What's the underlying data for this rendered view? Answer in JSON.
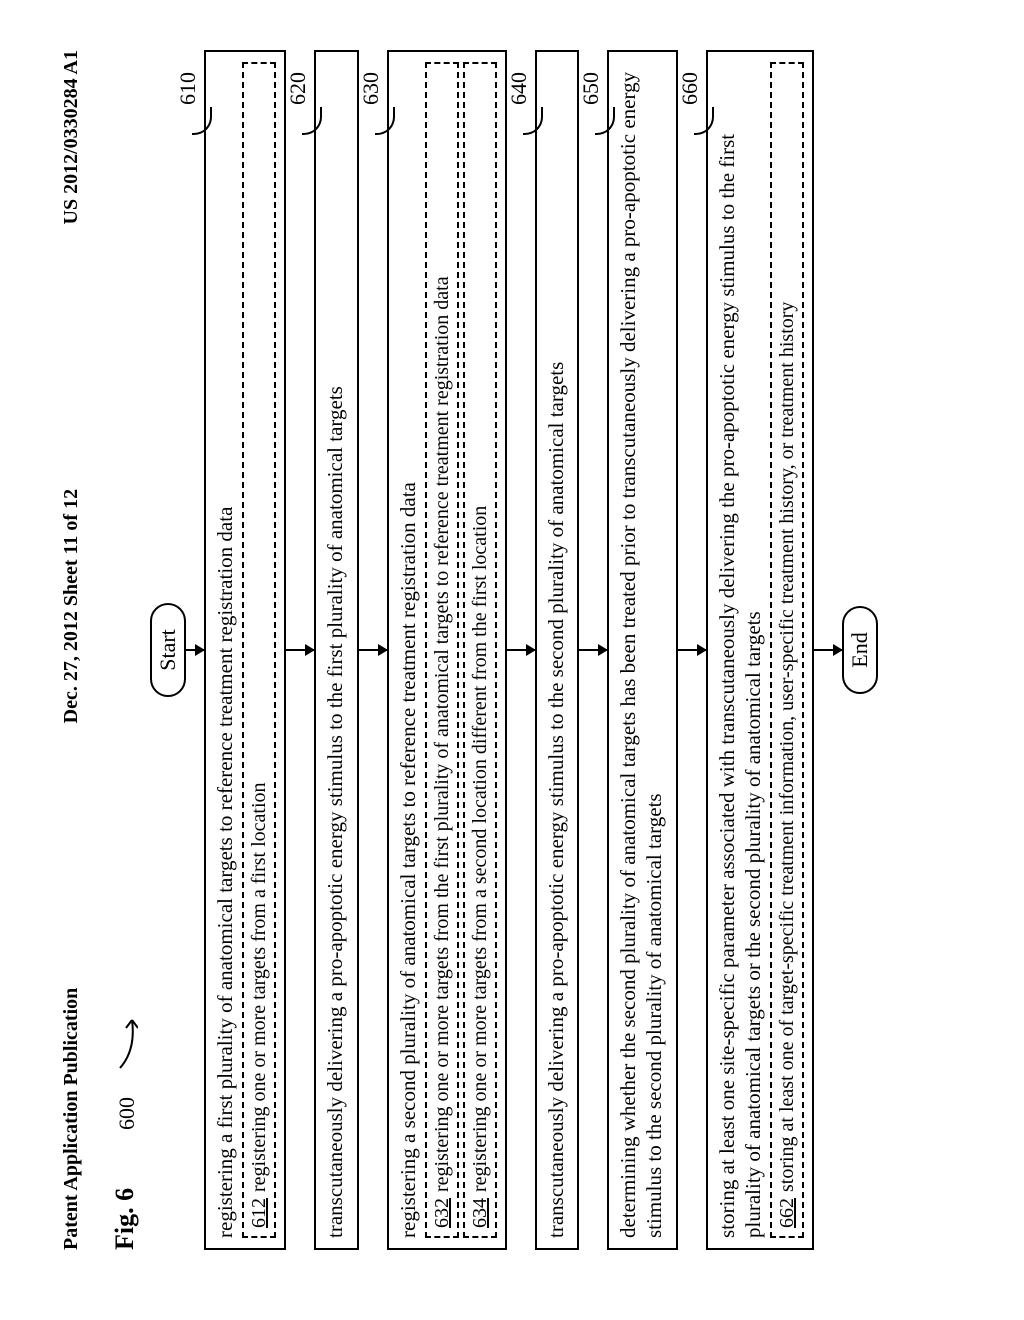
{
  "header": {
    "left": "Patent Application Publication",
    "center": "Dec. 27, 2012  Sheet 11 of 12",
    "right": "US 2012/0330284 A1"
  },
  "figure": {
    "label": "Fig. 6",
    "ref": "600",
    "start": "Start",
    "end": "End"
  },
  "steps": [
    {
      "ref": "610",
      "text": "registering a first plurality of anatomical targets to reference treatment registration data",
      "subs": [
        {
          "num": "612",
          "text": "registering one or more targets from a first location"
        }
      ]
    },
    {
      "ref": "620",
      "text": "transcutaneously delivering a pro-apoptotic energy stimulus to the first plurality of anatomical targets",
      "subs": []
    },
    {
      "ref": "630",
      "text": "registering a second plurality of anatomical targets to reference treatment registration data",
      "subs": [
        {
          "num": "632",
          "text": "registering one or more targets from the first plurality of anatomical targets to reference treatment registration data"
        },
        {
          "num": "634",
          "text": "registering one or more targets from a second location different from the first location"
        }
      ]
    },
    {
      "ref": "640",
      "text": "transcutaneously delivering a pro-apoptotic energy stimulus to the second plurality of anatomical targets",
      "subs": []
    },
    {
      "ref": "650",
      "text": "determining whether the second plurality of anatomical targets has been treated prior to transcutaneously delivering a pro-apoptotic energy stimulus to the second plurality of anatomical targets",
      "subs": []
    },
    {
      "ref": "660",
      "text": "storing at least one site-specific parameter associated with transcutaneously delivering the pro-apoptotic energy stimulus to the first plurality of anatomical targets or the second plurality of anatomical targets",
      "subs": [
        {
          "num": "662",
          "text": "storing at least one of target-specific treatment information, user-specific treatment history, or treatment history"
        }
      ]
    }
  ],
  "style": {
    "connector_height_top": 18,
    "connector_height": 28,
    "border_color": "#000000",
    "bg": "#ffffff",
    "font_main": 21,
    "font_sub": 20,
    "font_ref": 22
  }
}
